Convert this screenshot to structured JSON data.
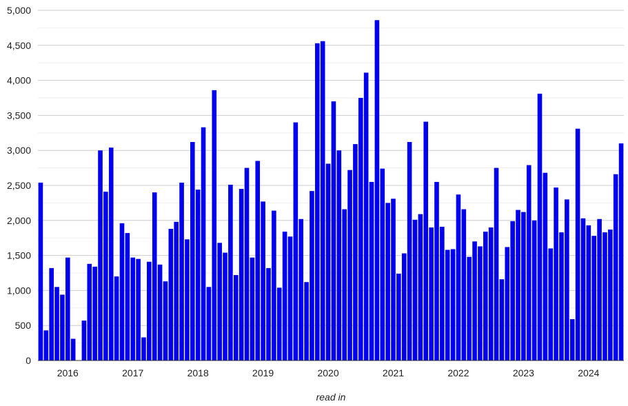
{
  "chart_data": {
    "type": "bar",
    "xlabel": "read in",
    "ylabel": "",
    "ylim": [
      0,
      5000
    ],
    "grid": true,
    "legend": "none",
    "bar_color": "#0000ee",
    "y_ticks": [
      "0",
      "500",
      "1,000",
      "1,500",
      "2,000",
      "2,500",
      "3,000",
      "3,500",
      "4,000",
      "4,500",
      "5,000"
    ],
    "y_tick_values": [
      0,
      500,
      1000,
      1500,
      2000,
      2500,
      3000,
      3500,
      4000,
      4500,
      5000
    ],
    "x_ticks": [
      {
        "label": "2016",
        "month_index": 5
      },
      {
        "label": "2017",
        "month_index": 17
      },
      {
        "label": "2018",
        "month_index": 29
      },
      {
        "label": "2019",
        "month_index": 41
      },
      {
        "label": "2020",
        "month_index": 53
      },
      {
        "label": "2021",
        "month_index": 65
      },
      {
        "label": "2022",
        "month_index": 77
      },
      {
        "label": "2023",
        "month_index": 89
      },
      {
        "label": "2024",
        "month_index": 101
      }
    ],
    "categories": [
      "2015-08",
      "2015-09",
      "2015-10",
      "2015-11",
      "2015-12",
      "2016-01",
      "2016-02",
      "2016-03",
      "2016-04",
      "2016-05",
      "2016-06",
      "2016-07",
      "2016-08",
      "2016-09",
      "2016-10",
      "2016-11",
      "2016-12",
      "2017-01",
      "2017-02",
      "2017-03",
      "2017-04",
      "2017-05",
      "2017-06",
      "2017-07",
      "2017-08",
      "2017-09",
      "2017-10",
      "2017-11",
      "2017-12",
      "2018-01",
      "2018-02",
      "2018-03",
      "2018-04",
      "2018-05",
      "2018-06",
      "2018-07",
      "2018-08",
      "2018-09",
      "2018-10",
      "2018-11",
      "2018-12",
      "2019-01",
      "2019-02",
      "2019-03",
      "2019-04",
      "2019-05",
      "2019-06",
      "2019-07",
      "2019-08",
      "2019-09",
      "2019-10",
      "2019-11",
      "2019-12",
      "2020-01",
      "2020-02",
      "2020-03",
      "2020-04",
      "2020-05",
      "2020-06",
      "2020-07",
      "2020-08",
      "2020-09",
      "2020-10",
      "2020-11",
      "2020-12",
      "2021-01",
      "2021-02",
      "2021-03",
      "2021-04",
      "2021-05",
      "2021-06",
      "2021-07",
      "2021-08",
      "2021-09",
      "2021-10",
      "2021-11",
      "2021-12",
      "2022-01",
      "2022-02",
      "2022-03",
      "2022-04",
      "2022-05",
      "2022-06",
      "2022-07",
      "2022-08",
      "2022-09",
      "2022-10",
      "2022-11",
      "2022-12",
      "2023-01",
      "2023-02",
      "2023-03",
      "2023-04",
      "2023-05",
      "2023-06",
      "2023-07",
      "2023-08",
      "2023-09",
      "2023-10",
      "2023-11",
      "2023-12",
      "2024-01",
      "2024-02",
      "2024-03",
      "2024-04",
      "2024-05",
      "2024-06",
      "2024-07"
    ],
    "values": [
      2540,
      430,
      1320,
      1050,
      940,
      1470,
      310,
      0,
      570,
      1380,
      1340,
      3000,
      2410,
      3040,
      1200,
      1960,
      1820,
      1470,
      1450,
      330,
      1410,
      2400,
      1370,
      1130,
      1880,
      1980,
      2540,
      1730,
      3120,
      2440,
      3330,
      1050,
      3860,
      1680,
      1540,
      2510,
      1220,
      2450,
      2750,
      1470,
      2850,
      2270,
      1320,
      2140,
      1040,
      1840,
      1770,
      3400,
      2020,
      1120,
      2420,
      4530,
      4560,
      2810,
      3700,
      3000,
      2160,
      2720,
      3090,
      3750,
      4110,
      2550,
      4860,
      2740,
      2250,
      2310,
      1240,
      1530,
      3120,
      2010,
      2090,
      3410,
      1900,
      2550,
      1910,
      1580,
      1590,
      2370,
      2160,
      1480,
      1700,
      1630,
      1840,
      1900,
      2750,
      1160,
      1620,
      1990,
      2150,
      2120,
      2790,
      2000,
      3810,
      2680,
      1600,
      2470,
      1830,
      2300,
      590,
      3310,
      2030,
      1930,
      1780,
      2020,
      1830,
      1870,
      2660,
      3100
    ]
  }
}
